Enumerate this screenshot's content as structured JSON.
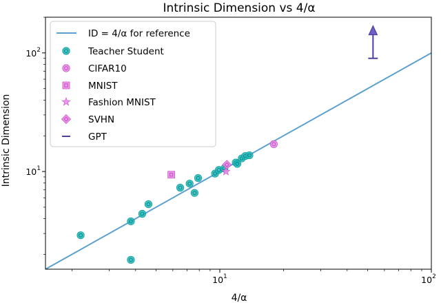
{
  "chart_data": {
    "type": "scatter",
    "title": "Intrinsic Dimension vs 4/α",
    "xlabel": "4/α",
    "ylabel": "Intrinsic Dimension",
    "xscale": "log",
    "yscale": "log",
    "xlim": [
      1.5,
      100
    ],
    "ylim": [
      1.5,
      200
    ],
    "x_ticks": [
      {
        "value": 10,
        "base": "10",
        "exp": "1"
      },
      {
        "value": 100,
        "base": "10",
        "exp": "2"
      }
    ],
    "y_ticks": [
      {
        "value": 10,
        "base": "10",
        "exp": "1"
      },
      {
        "value": 100,
        "base": "10",
        "exp": "2"
      }
    ],
    "grid": false,
    "legend_position": "top-left",
    "reference_line": {
      "name": "ID = 4/α for reference",
      "color": "#5b9fcf",
      "x": [
        1.5,
        100
      ],
      "y": [
        1.5,
        100
      ]
    },
    "series": [
      {
        "name": "Teacher Student",
        "marker": "circle-ring",
        "color": "#1fbcbc",
        "x": [
          2.2,
          3.8,
          3.8,
          4.3,
          4.6,
          6.5,
          7.2,
          7.6,
          7.9,
          9.5,
          9.9,
          10.5,
          11.9,
          12.1,
          12.7,
          13.2,
          13.8
        ],
        "y": [
          2.9,
          1.8,
          3.8,
          4.4,
          5.3,
          7.3,
          7.9,
          6.6,
          8.8,
          9.6,
          10.3,
          10.6,
          11.9,
          11.6,
          12.9,
          13.5,
          13.7
        ]
      },
      {
        "name": "CIFAR10",
        "marker": "circle",
        "color": "#ee82ee",
        "x": [
          18.0
        ],
        "y": [
          17.0
        ]
      },
      {
        "name": "MNIST",
        "marker": "square",
        "color": "#ee82ee",
        "x": [
          5.9
        ],
        "y": [
          9.4
        ]
      },
      {
        "name": "Fashion MNIST",
        "marker": "star",
        "color": "#ee82ee",
        "x": [
          10.7
        ],
        "y": [
          10.0
        ]
      },
      {
        "name": "SVHN",
        "marker": "diamond",
        "color": "#ee82ee",
        "x": [
          10.8
        ],
        "y": [
          11.4
        ]
      },
      {
        "name": "GPT",
        "marker": "lower-bound-arrow",
        "color": "#4b3f9e",
        "x": [
          53
        ],
        "y_low": [
          90
        ],
        "y_high": [
          150
        ]
      }
    ]
  }
}
